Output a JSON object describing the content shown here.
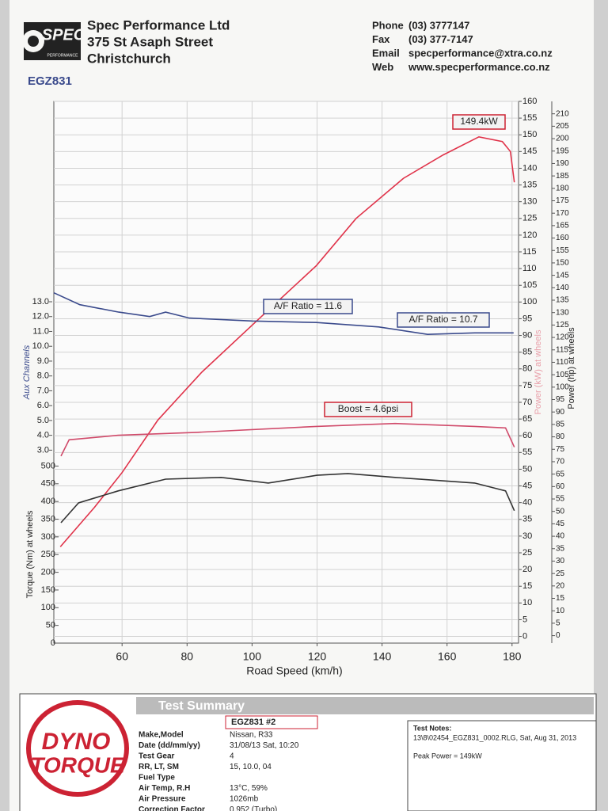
{
  "header": {
    "logo": {
      "brand": "SPEC",
      "sub": "PERFORMANCE"
    },
    "company": "Spec Performance Ltd",
    "address": "375 St  Asaph Street",
    "city": "Christchurch",
    "contacts": [
      {
        "label": "Phone",
        "value": "(03) 3777147"
      },
      {
        "label": "Fax",
        "value": "(03) 377-7147"
      },
      {
        "label": "Email",
        "value": "specperformance@xtra.co.nz"
      },
      {
        "label": "Web",
        "value": "www.specperformance.co.nz"
      }
    ],
    "plate": "EGZ831"
  },
  "chart_data": {
    "type": "line",
    "xlabel": "Road Speed (km/h)",
    "xlim": [
      39,
      182
    ],
    "xticks": [
      60,
      80,
      100,
      120,
      140,
      160,
      180
    ],
    "grid": true,
    "axes": [
      {
        "label": "Power (kW) at wheels",
        "side": "right",
        "lim": [
          -2,
          160
        ],
        "ticks": [
          0,
          5,
          10,
          15,
          20,
          25,
          30,
          35,
          40,
          45,
          50,
          55,
          60,
          65,
          70,
          75,
          80,
          85,
          90,
          95,
          100,
          105,
          110,
          115,
          120,
          125,
          130,
          135,
          140,
          145,
          150,
          155,
          160
        ]
      },
      {
        "label": "Power (hp) at wheels",
        "side": "right",
        "lim": [
          -3,
          215
        ],
        "ticks": [
          0,
          5,
          10,
          15,
          20,
          25,
          30,
          35,
          40,
          45,
          50,
          55,
          60,
          65,
          70,
          75,
          80,
          85,
          90,
          95,
          100,
          105,
          110,
          115,
          120,
          125,
          130,
          135,
          140,
          145,
          150,
          155,
          160,
          165,
          170,
          175,
          180,
          185,
          190,
          195,
          200,
          205,
          210
        ]
      },
      {
        "label": "Aux Channels",
        "side": "left",
        "lim": [
          -10,
          26.5
        ],
        "ticks": [
          {
            "value": 3,
            "label": "3.0"
          },
          {
            "value": 4,
            "label": "4.0"
          },
          {
            "value": 5,
            "label": "5.0"
          },
          {
            "value": 6,
            "label": "6.0"
          },
          {
            "value": 7,
            "label": "7.0"
          },
          {
            "value": 8,
            "label": "8.0"
          },
          {
            "value": 9,
            "label": "9.0"
          },
          {
            "value": 10,
            "label": "10.0"
          },
          {
            "value": 11,
            "label": "11.0"
          },
          {
            "value": 12,
            "label": "12.0"
          },
          {
            "value": 13,
            "label": "13.0"
          }
        ]
      },
      {
        "label": "Torque (Nm) at wheels",
        "side": "left",
        "lim": [
          0,
          1530
        ],
        "ticks": [
          0,
          50,
          100,
          150,
          200,
          250,
          300,
          350,
          400,
          450,
          500
        ]
      }
    ],
    "series": [
      {
        "color": "#e0334a",
        "axis": 0,
        "x": [
          41,
          51.5,
          60,
          71,
          84.4,
          102.7,
          119.8,
          132,
          146.6,
          158.8,
          169.8,
          177,
          179.5,
          180.7
        ],
        "values": [
          26.8,
          38.6,
          49,
          64.7,
          78.9,
          95.5,
          110.9,
          125,
          137,
          144,
          149.4,
          148,
          145,
          135.8
        ]
      },
      {
        "color": "#3a4a8c",
        "axis": 2,
        "x": [
          39,
          47,
          59,
          68.5,
          73.4,
          80.7,
          100,
          119.8,
          139,
          154,
          168.5,
          180.5
        ],
        "values": [
          13.6,
          12.8,
          12.3,
          12,
          12.3,
          11.9,
          11.7,
          11.6,
          11.3,
          10.8,
          10.9,
          10.9
        ]
      },
      {
        "color": "#d04a6a",
        "axis": 2,
        "x": [
          41.2,
          43.7,
          58.8,
          83,
          119.8,
          144,
          168.5,
          178,
          180.7
        ],
        "values": [
          2.6,
          3.7,
          4,
          4.2,
          4.6,
          4.8,
          4.6,
          4.5,
          3.2
        ]
      },
      {
        "color": "#333333",
        "axis": 3,
        "x": [
          41.2,
          46.6,
          58.8,
          73.4,
          90.5,
          105,
          120,
          129.5,
          144,
          168.5,
          178,
          180.7
        ],
        "values": [
          340,
          396,
          430,
          463,
          468,
          452,
          474,
          479,
          468,
          452,
          430,
          374
        ]
      }
    ],
    "annotations": [
      "149.4kW",
      "A/F Ratio = 11.6",
      "A/F Ratio = 10.7",
      "Boost = 4.6psi"
    ]
  },
  "summary": {
    "logo": [
      "DYNO",
      "TORQUE"
    ],
    "title": "Test Summary",
    "run": "EGZ831   #2",
    "rows": [
      {
        "label": "Make,Model",
        "value": "Nissan, R33"
      },
      {
        "label": "Date (dd/mm/yy)",
        "value": "31/08/13 Sat, 10:20"
      },
      {
        "label": "Test Gear",
        "value": "4"
      },
      {
        "label": "RR, LT, SM",
        "value": "15,    10.0,    04"
      },
      {
        "label": "Fuel Type"
      },
      {
        "label": "Air Temp, R.H",
        "value": "13°C,    59%"
      },
      {
        "label": "Air Pressure",
        "value": "1026mb"
      },
      {
        "label": "Correction Factor",
        "value": "0.952 (Turbo)"
      }
    ],
    "notes": {
      "title": "Test Notes:",
      "file": "13\\8\\02454_EGZ831_0002.RLG, Sat, Aug 31, 2013",
      "peak": "Peak Power = 149kW"
    }
  }
}
